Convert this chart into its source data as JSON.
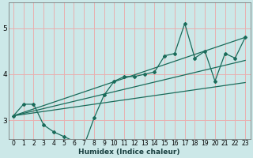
{
  "xlabel": "Humidex (Indice chaleur)",
  "bg_color": "#cce8e8",
  "grid_color": "#e8b0b0",
  "line_color": "#1a6b5a",
  "xlim": [
    -0.5,
    23.5
  ],
  "ylim": [
    2.6,
    5.55
  ],
  "yticks": [
    3,
    4,
    5
  ],
  "xticks": [
    0,
    1,
    2,
    3,
    4,
    5,
    6,
    7,
    8,
    9,
    10,
    11,
    12,
    13,
    14,
    15,
    16,
    17,
    18,
    19,
    20,
    21,
    22,
    23
  ],
  "main_x": [
    0,
    1,
    2,
    3,
    4,
    5,
    6,
    7,
    8,
    9,
    10,
    11,
    12,
    13,
    14,
    15,
    16,
    17,
    18,
    19,
    20,
    21,
    22,
    23
  ],
  "main_y": [
    3.1,
    3.35,
    3.35,
    2.9,
    2.75,
    2.65,
    2.55,
    2.45,
    3.05,
    3.55,
    3.85,
    3.95,
    3.95,
    4.0,
    4.05,
    4.4,
    4.45,
    5.1,
    4.35,
    4.5,
    3.85,
    4.45,
    4.35,
    4.8
  ],
  "trend1_x": [
    0,
    23
  ],
  "trend1_y": [
    3.1,
    4.8
  ],
  "trend2_x": [
    0,
    23
  ],
  "trend2_y": [
    3.1,
    3.82
  ],
  "trend3_x": [
    0,
    23
  ],
  "trend3_y": [
    3.1,
    4.3
  ]
}
